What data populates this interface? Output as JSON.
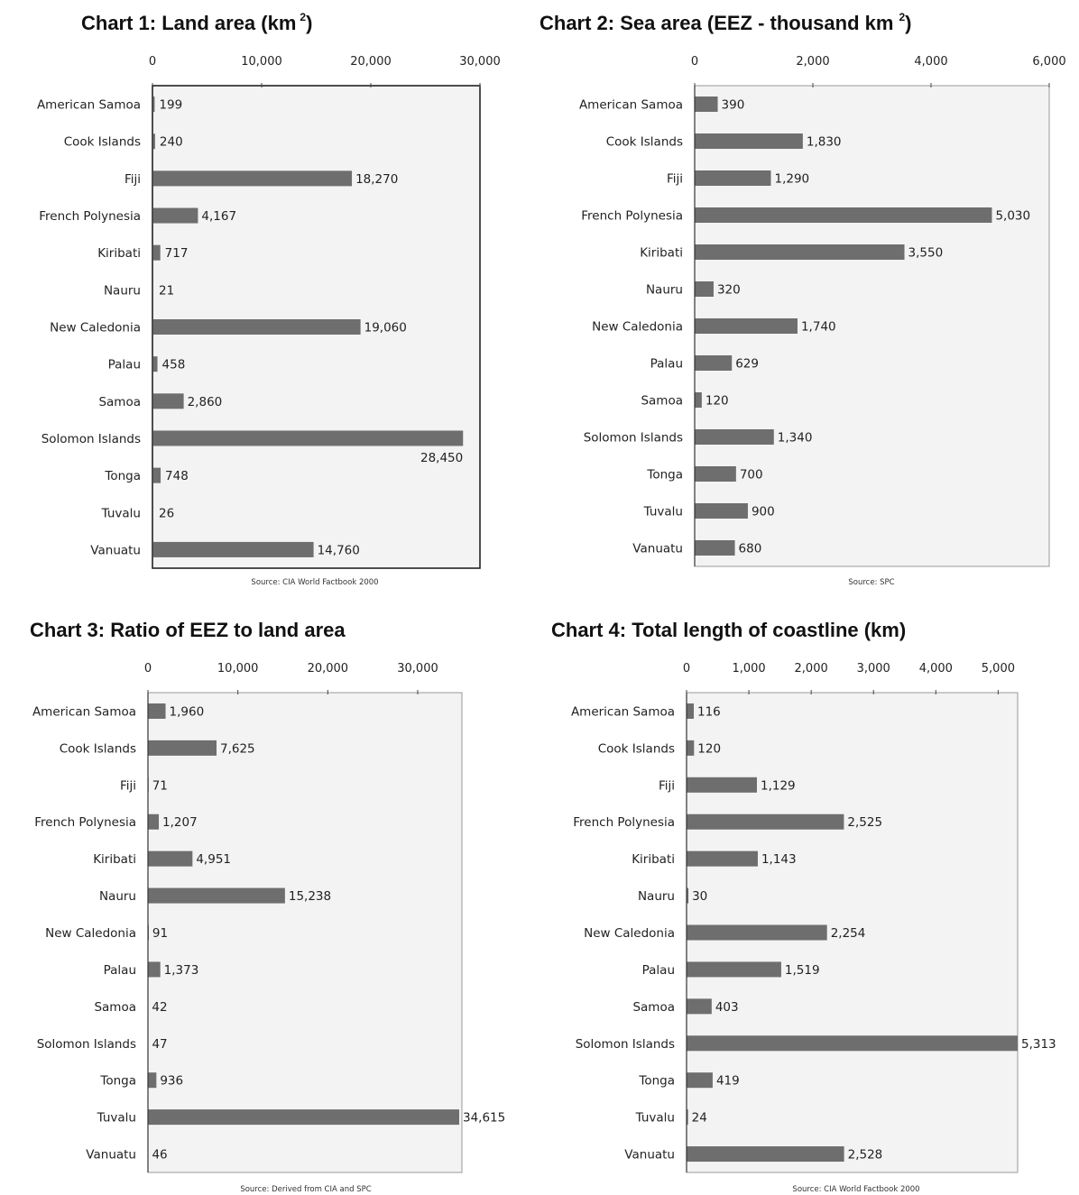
{
  "chart_data": [
    {
      "type": "bar",
      "orientation": "horizontal",
      "title": "Chart 1: Land area (km",
      "title_sup": "2",
      "title_end": ")",
      "categories": [
        "American Samoa",
        "Cook Islands",
        "Fiji",
        "French Polynesia",
        "Kiribati",
        "Nauru",
        "New Caledonia",
        "Palau",
        "Samoa",
        "Solomon Islands",
        "Tonga",
        "Tuvalu",
        "Vanuatu"
      ],
      "values": [
        199,
        240,
        18270,
        4167,
        717,
        21,
        19060,
        458,
        2860,
        28450,
        748,
        26,
        14760
      ],
      "value_labels": [
        "199",
        "240",
        "18,270",
        "4,167",
        "717",
        "21",
        "19,060",
        "458",
        "2,860",
        "28,450",
        "748",
        "26",
        "14,760"
      ],
      "xlim": [
        0,
        30000
      ],
      "ticks": [
        "0",
        "10,000",
        "20,000",
        "30,000"
      ],
      "tick_values": [
        0,
        10000,
        20000,
        30000
      ],
      "source": "Source: CIA World Factbook 2000",
      "bar_color": "#6e6e6e"
    },
    {
      "type": "bar",
      "orientation": "horizontal",
      "title": "Chart  2: Sea area (EEZ - thousand km",
      "title_sup": "2",
      "title_end": ")",
      "categories": [
        "American Samoa",
        "Cook Islands",
        "Fiji",
        "French Polynesia",
        "Kiribati",
        "Nauru",
        "New Caledonia",
        "Palau",
        "Samoa",
        "Solomon Islands",
        "Tonga",
        "Tuvalu",
        "Vanuatu"
      ],
      "values": [
        390,
        1830,
        1290,
        5030,
        3550,
        320,
        1740,
        629,
        120,
        1340,
        700,
        900,
        680
      ],
      "value_labels": [
        "390",
        "1,830",
        "1,290",
        "5,030",
        "3,550",
        "320",
        "1,740",
        "629",
        "120",
        "1,340",
        "700",
        "900",
        "680"
      ],
      "xlim": [
        0,
        6000
      ],
      "ticks": [
        "0",
        "2,000",
        "4,000",
        "6,000"
      ],
      "tick_values": [
        0,
        2000,
        4000,
        6000
      ],
      "source": "Source: SPC",
      "bar_color": "#6e6e6e"
    },
    {
      "type": "bar",
      "orientation": "horizontal",
      "title": "Chart 3: Ratio of EEZ to land area",
      "title_sup": "",
      "title_end": "",
      "categories": [
        "American Samoa",
        "Cook Islands",
        "Fiji",
        "French Polynesia",
        "Kiribati",
        "Nauru",
        "New Caledonia",
        "Palau",
        "Samoa",
        "Solomon Islands",
        "Tonga",
        "Tuvalu",
        "Vanuatu"
      ],
      "values": [
        1960,
        7625,
        71,
        1207,
        4951,
        15238,
        91,
        1373,
        42,
        47,
        936,
        34615,
        46
      ],
      "value_labels": [
        "1,960",
        "7,625",
        "71",
        "1,207",
        "4,951",
        "15,238",
        "91",
        "1,373",
        "42",
        "47",
        "936",
        "34,615",
        "46"
      ],
      "xlim": [
        0,
        34615
      ],
      "ticks": [
        "0",
        "10,000",
        "20,000",
        "30,000"
      ],
      "tick_values": [
        0,
        10000,
        20000,
        30000
      ],
      "source": "Source: Derived from CIA and SPC",
      "bar_color": "#6e6e6e"
    },
    {
      "type": "bar",
      "orientation": "horizontal",
      "title": "Chart 4: Total length of coastline (km)",
      "title_sup": "",
      "title_end": "",
      "categories": [
        "American Samoa",
        "Cook Islands",
        "Fiji",
        "French Polynesia",
        "Kiribati",
        "Nauru",
        "New Caledonia",
        "Palau",
        "Samoa",
        "Solomon Islands",
        "Tonga",
        "Tuvalu",
        "Vanuatu"
      ],
      "values": [
        116,
        120,
        1129,
        2525,
        1143,
        30,
        2254,
        1519,
        403,
        5313,
        419,
        24,
        2528
      ],
      "value_labels": [
        "116",
        "120",
        "1,129",
        "2,525",
        "1,143",
        "30",
        "2,254",
        "1,519",
        "403",
        "5,313",
        "419",
        "24",
        "2,528"
      ],
      "xlim": [
        0,
        5313
      ],
      "ticks": [
        "0",
        "1,000",
        "2,000",
        "3,000",
        "4,000",
        "5,000"
      ],
      "tick_values": [
        0,
        1000,
        2000,
        3000,
        4000,
        5000
      ],
      "source": "Source: CIA World Factbook 2000",
      "bar_color": "#6e6e6e"
    }
  ]
}
